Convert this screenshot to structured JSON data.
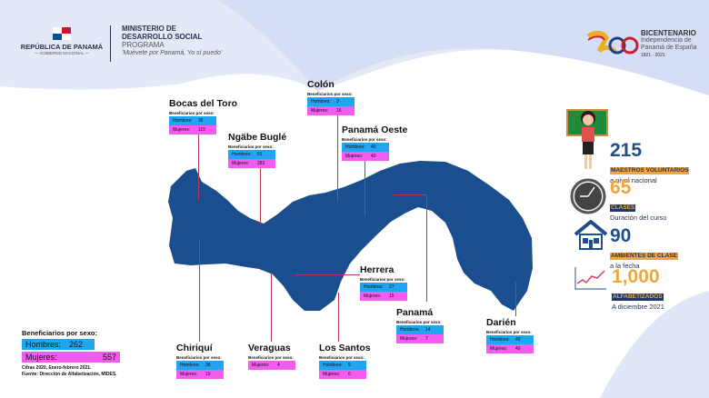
{
  "header": {
    "gov_title": "REPÚBLICA DE PANAMÁ",
    "gov_subtitle": "— GOBIERNO NACIONAL —",
    "ministry_line1": "MINISTERIO DE",
    "ministry_line2": "DESARROLLO SOCIAL",
    "program_label": "PROGRAMA",
    "program_name": "'Muévete por Panamá, Yo sí puedo'",
    "bicentenario_title": "BICENTENARIO",
    "bicentenario_line1": "Independencia de",
    "bicentenario_line2": "Panamá de España",
    "bicentenario_years": "1821 - 2021"
  },
  "labels": {
    "by_sex": "Beneficiarios por sexo:",
    "men": "Hombres:",
    "women": "Mujeres:"
  },
  "provinces": [
    {
      "name": "Bocas del Toro",
      "men": "35",
      "women": "115"
    },
    {
      "name": "Ngäbe Buglé",
      "men": "51",
      "women": "283"
    },
    {
      "name": "Colón",
      "men": "3",
      "women": "16"
    },
    {
      "name": "Panamá Oeste",
      "men": "40",
      "women": "43"
    },
    {
      "name": "Herrera",
      "men": "27",
      "women": "15"
    },
    {
      "name": "Panamá",
      "men": "14",
      "women": "7"
    },
    {
      "name": "Darién",
      "men": "49",
      "women": "49"
    },
    {
      "name": "Chiriquí",
      "men": "38",
      "women": "19"
    },
    {
      "name": "Veraguas",
      "women": "4"
    },
    {
      "name": "Los Santos",
      "men": "5",
      "women": "6"
    }
  ],
  "totals": {
    "title": "Beneficiarios por sexo:",
    "men_label": "Hombres:",
    "men": "262",
    "women_label": "Mujeres:",
    "women": "557",
    "note1": "Cifras 2020, Enero-febrero 2021.",
    "note2": "Fuente: Dirección de Alfabetización, MIDES."
  },
  "stats": [
    {
      "value": "215",
      "tag": "MAESTROS VOLUNTARIOS",
      "desc": "a nivel nacional",
      "icon": "teacher-icon"
    },
    {
      "value": "65",
      "tag": "CLASES",
      "desc": "Duración del curso",
      "icon": "clock-icon"
    },
    {
      "value": "90",
      "tag": "AMBIENTES DE CLASE",
      "desc": "a la fecha",
      "icon": "house-icon"
    },
    {
      "value": "1,000",
      "tag": "ALFABETIZADOS",
      "desc": "A diciembre 2021",
      "icon": "chart-icon"
    }
  ],
  "colors": {
    "navy": "#1f4e8c",
    "map": "#1a4e8e",
    "orange": "#f2a53a",
    "men": "#1ea6f0",
    "women": "#f25cf0",
    "line": "#b33a52"
  }
}
